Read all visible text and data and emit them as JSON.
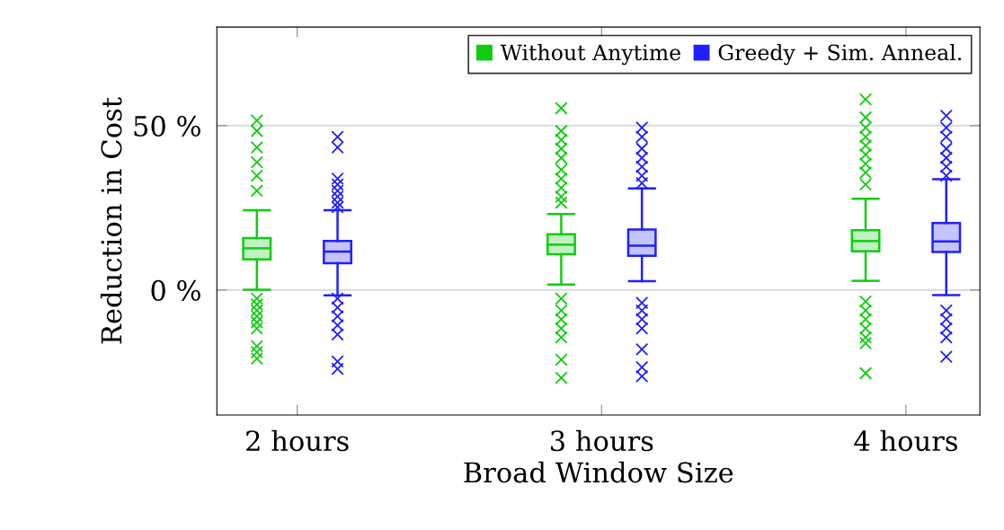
{
  "chart_data": {
    "type": "box",
    "xlabel": "Broad Window Size",
    "ylabel": "Reduction in Cost",
    "categories": [
      "2 hours",
      "3 hours",
      "4 hours"
    ],
    "ylim": [
      -38,
      80
    ],
    "yticks": [
      {
        "value": 0,
        "label": "0 %"
      },
      {
        "value": 50,
        "label": "50 %"
      }
    ],
    "grid": "y",
    "legend": "top right",
    "marker": "cross",
    "series": [
      {
        "name": "Without Anytime",
        "color": "#11cc11",
        "boxes": [
          {
            "low": 0.1,
            "q1": 9.3,
            "median": 12.7,
            "q3": 15.8,
            "high": 24.3,
            "outliers": [
              51.6,
              48.4,
              43.4,
              38.9,
              34.8,
              30.2,
              -2.6,
              -4.4,
              -6.2,
              -8.0,
              -9.8,
              -11.7,
              -17.1,
              -18.9,
              -20.8
            ]
          },
          {
            "low": 1.7,
            "q1": 10.9,
            "median": 13.8,
            "q3": 17.0,
            "high": 23.1,
            "outliers": [
              55.3,
              48.4,
              45.7,
              43.0,
              40.2,
              36.6,
              33.9,
              31.1,
              28.4,
              26.6,
              -2.6,
              -6.2,
              -8.9,
              -11.7,
              -14.4,
              -21.2,
              -26.7
            ]
          },
          {
            "low": 2.8,
            "q1": 11.8,
            "median": 14.9,
            "q3": 18.2,
            "high": 27.8,
            "outliers": [
              58.0,
              52.5,
              49.4,
              46.6,
              43.9,
              41.2,
              38.4,
              35.7,
              32.1,
              -3.5,
              -6.2,
              -8.9,
              -11.7,
              -14.4,
              -16.2,
              -25.3
            ]
          }
        ]
      },
      {
        "name": "Greedy + Sim. Anneal.",
        "color": "#2020ff",
        "boxes": [
          {
            "low": -1.6,
            "q1": 8.2,
            "median": 11.7,
            "q3": 14.9,
            "high": 24.3,
            "outliers": [
              46.6,
              43.4,
              33.9,
              32.1,
              30.2,
              28.4,
              26.6,
              25.2,
              -2.6,
              -5.3,
              -8.0,
              -10.7,
              -13.5,
              -21.7,
              -24.0
            ]
          },
          {
            "low": 2.7,
            "q1": 10.4,
            "median": 13.5,
            "q3": 18.4,
            "high": 30.9,
            "outliers": [
              49.4,
              46.6,
              43.0,
              40.2,
              37.5,
              34.8,
              32.5,
              -3.9,
              -6.2,
              -8.9,
              -11.7,
              -18.0,
              -23.5,
              -26.2
            ]
          },
          {
            "low": -1.5,
            "q1": 11.6,
            "median": 14.8,
            "q3": 20.4,
            "high": 33.7,
            "outliers": [
              53.0,
              49.4,
              46.6,
              43.0,
              40.2,
              37.5,
              34.8,
              -6.2,
              -8.9,
              -11.7,
              -14.4,
              -20.3
            ]
          }
        ]
      }
    ]
  }
}
